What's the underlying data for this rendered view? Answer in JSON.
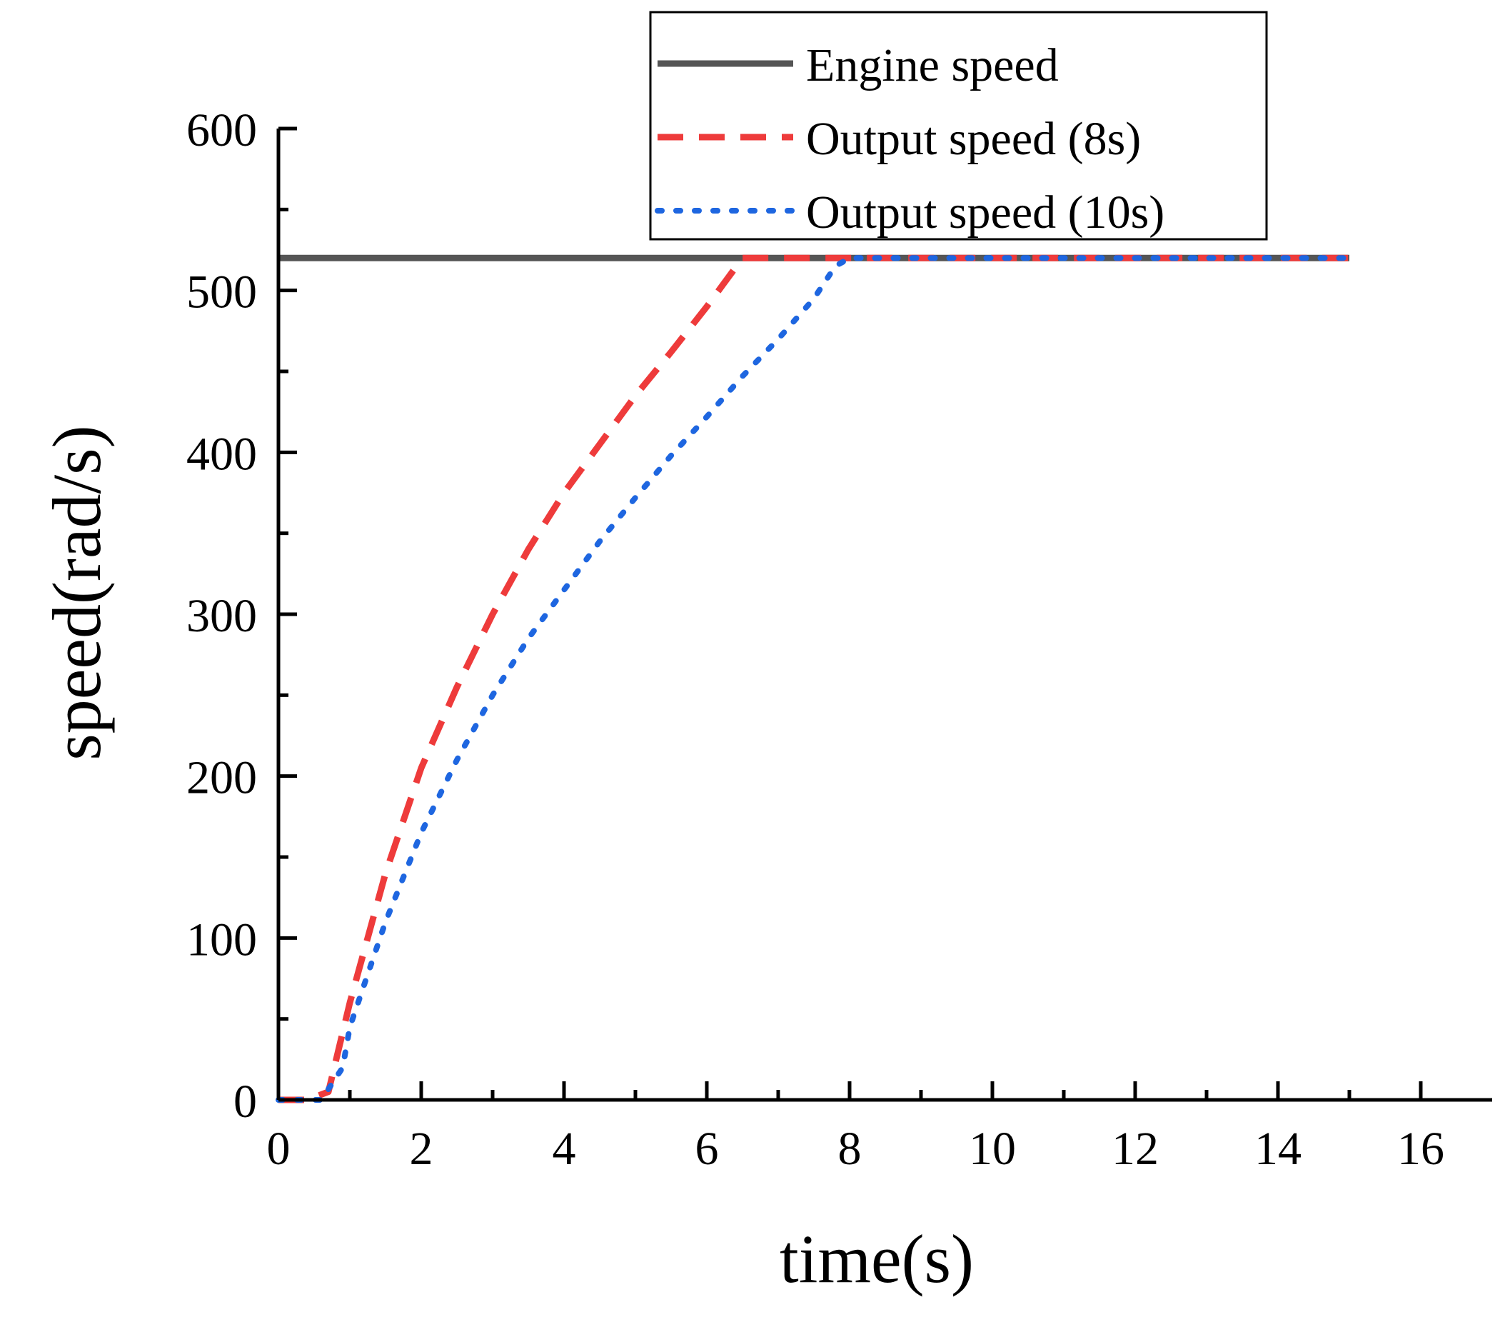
{
  "chart_data": {
    "type": "line",
    "title": "",
    "xlabel": "time(s)",
    "ylabel": "speed(rad/s)",
    "xlim": [
      0,
      17
    ],
    "ylim": [
      0,
      600
    ],
    "xticks": [
      0,
      2,
      4,
      6,
      8,
      10,
      12,
      14,
      16
    ],
    "yticks": [
      0,
      100,
      200,
      300,
      400,
      500,
      600
    ],
    "grid": false,
    "legend_position": "top-right",
    "series": [
      {
        "name": "Engine speed",
        "style": "solid",
        "color": "#555555",
        "x": [
          0,
          15
        ],
        "y": [
          520,
          520
        ]
      },
      {
        "name": "Output speed (8s)",
        "style": "dashed",
        "color": "#ee3b3b",
        "x": [
          0,
          0.4,
          0.7,
          1.0,
          1.5,
          2.0,
          2.5,
          3.0,
          3.5,
          4.0,
          4.5,
          5.0,
          5.5,
          6.0,
          6.5,
          7.0,
          8.0,
          10.0,
          12.0,
          15.0
        ],
        "y": [
          0,
          0,
          5,
          60,
          140,
          205,
          255,
          300,
          340,
          375,
          405,
          435,
          462,
          490,
          520,
          520,
          520,
          520,
          520,
          520
        ]
      },
      {
        "name": "Output speed (10s)",
        "style": "dotted",
        "color": "#1e66e0",
        "x": [
          0,
          0.6,
          0.9,
          1.0,
          1.5,
          2.0,
          2.5,
          3.0,
          3.5,
          4.0,
          4.5,
          5.0,
          5.5,
          6.0,
          6.5,
          7.0,
          7.5,
          7.8,
          8.0,
          10.0,
          12.0,
          15.0
        ],
        "y": [
          0,
          0,
          20,
          45,
          110,
          165,
          210,
          250,
          285,
          315,
          345,
          372,
          398,
          422,
          447,
          470,
          495,
          515,
          520,
          520,
          520,
          520
        ]
      }
    ]
  }
}
